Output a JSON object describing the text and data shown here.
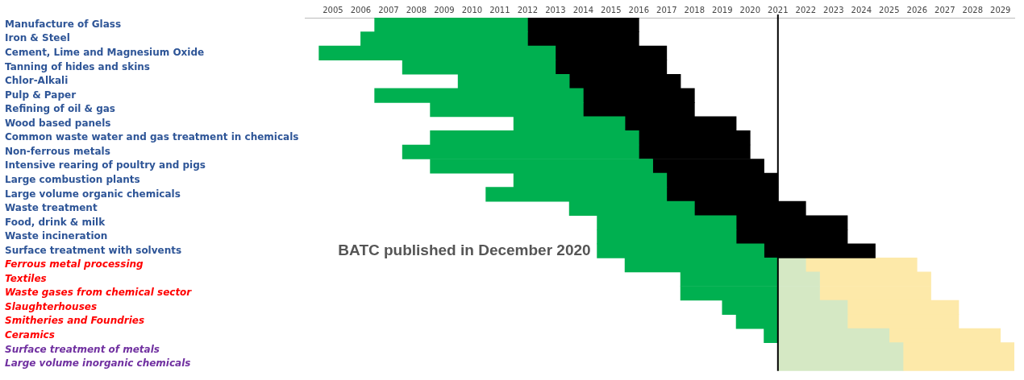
{
  "chart_data": {
    "type": "bar",
    "orientation": "horizontal",
    "categories": [
      "Manufacture of Glass",
      "Iron & Steel",
      "Cement, Lime and Magnesium Oxide",
      "Tanning of hides and skins",
      "Chlor-Alkali",
      "Pulp & Paper",
      "Refining of oil & gas",
      "Wood based panels",
      "Common waste water and gas treatment in chemicals",
      "Non-ferrous metals",
      "Intensive rearing of poultry and pigs",
      "Large combustion plants",
      "Large volume organic chemicals",
      "Waste treatment",
      "Food, drink & milk",
      "Waste incineration",
      "Surface treatment with solvents",
      "Ferrous metal processing",
      "Textiles",
      "Waste gases from chemical sector",
      "Slaughterhouses",
      "Smitheries and Foundries",
      "Ceramics",
      "Surface treatment of metals",
      "Large volume inorganic chemicals"
    ],
    "series": [
      {
        "color": "#00b050",
        "base": [
          2006.5,
          2006,
          2004.5,
          2007.5,
          2009.5,
          2006.5,
          2008.5,
          2011.5,
          2008.5,
          2007.5,
          2008.5,
          2011.5,
          2010.5,
          2013.5,
          2014.5,
          2014.5,
          2014.5,
          2015.5,
          2017.5,
          2017.5,
          2019,
          2019.5,
          2020.5,
          null,
          null
        ],
        "values": [
          5.5,
          6,
          8.5,
          5.5,
          4,
          7.5,
          5.5,
          4,
          7.5,
          8.5,
          8,
          5.5,
          6.5,
          4.5,
          5,
          5,
          6,
          5.5,
          3.5,
          3.5,
          2,
          1.5,
          0.5,
          null,
          null
        ]
      },
      {
        "color": "#000000",
        "base": [
          2012,
          2012,
          2013,
          2013,
          2013.5,
          2014,
          2014,
          2015.5,
          2016,
          2016,
          2016.5,
          2017,
          2017,
          2018,
          2019.5,
          2019.5,
          2020.5,
          null,
          null,
          null,
          null,
          null,
          null,
          null,
          null
        ],
        "values": [
          4,
          4,
          4,
          4,
          4,
          4,
          4,
          4,
          4,
          4,
          4,
          4,
          4,
          4,
          4,
          4,
          4,
          null,
          null,
          null,
          null,
          null,
          null,
          null,
          null
        ]
      },
      {
        "color": "#d5e8c4",
        "base": [
          null,
          null,
          null,
          null,
          null,
          null,
          null,
          null,
          null,
          null,
          null,
          null,
          null,
          null,
          null,
          null,
          null,
          2021,
          2021,
          2021,
          2021,
          2021,
          2021,
          2021,
          2021
        ],
        "values": [
          null,
          null,
          null,
          null,
          null,
          null,
          null,
          null,
          null,
          null,
          null,
          null,
          null,
          null,
          null,
          null,
          null,
          1,
          1.5,
          1.5,
          2.5,
          2.5,
          4,
          4.5,
          4.5
        ]
      },
      {
        "color": "#fde9a9",
        "base": [
          null,
          null,
          null,
          null,
          null,
          null,
          null,
          null,
          null,
          null,
          null,
          null,
          null,
          null,
          null,
          null,
          null,
          2022,
          2022.5,
          2022.5,
          2023.5,
          2023.5,
          2025,
          2025.5,
          2025.5
        ],
        "values": [
          null,
          null,
          null,
          null,
          null,
          null,
          null,
          null,
          null,
          null,
          null,
          null,
          null,
          null,
          null,
          null,
          null,
          4,
          4,
          4,
          4,
          4,
          4,
          4,
          4
        ]
      }
    ],
    "xlim": [
      2004,
      2029.5
    ],
    "xticks": [
      2005,
      2006,
      2007,
      2008,
      2009,
      2010,
      2011,
      2012,
      2013,
      2014,
      2015,
      2016,
      2017,
      2018,
      2019,
      2020,
      2021,
      2022,
      2023,
      2024,
      2025,
      2026,
      2027,
      2028,
      2029
    ],
    "ref_lines": [
      {
        "axis": "x",
        "value": 2021,
        "color": "#000000"
      }
    ],
    "annotations": [
      "BATC published in December 2020"
    ],
    "grid": false,
    "legend": false
  }
}
